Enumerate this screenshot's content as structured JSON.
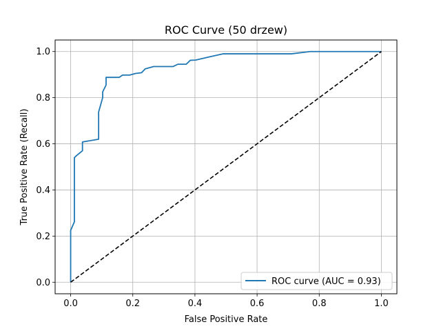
{
  "chart_data": {
    "type": "line",
    "title": "ROC Curve (50 drzew)",
    "xlabel": "False Positive Rate",
    "ylabel": "True Positive Rate (Recall)",
    "xlim": [
      -0.05,
      1.05
    ],
    "ylim": [
      -0.05,
      1.05
    ],
    "xticks": [
      0.0,
      0.2,
      0.4,
      0.6,
      0.8,
      1.0
    ],
    "yticks": [
      0.0,
      0.2,
      0.4,
      0.6,
      0.8,
      1.0
    ],
    "xtick_labels": [
      "0.0",
      "0.2",
      "0.4",
      "0.6",
      "0.8",
      "1.0"
    ],
    "ytick_labels": [
      "0.0",
      "0.2",
      "0.4",
      "0.6",
      "0.8",
      "1.0"
    ],
    "grid": true,
    "legend_position": "lower-right",
    "series": [
      {
        "name": "ROC curve (AUC = 0.93)",
        "color": "#1f77b4",
        "style": "solid",
        "x": [
          0.0,
          0.0,
          0.0,
          0.012,
          0.012,
          0.018,
          0.038,
          0.038,
          0.09,
          0.09,
          0.103,
          0.103,
          0.114,
          0.114,
          0.156,
          0.167,
          0.19,
          0.209,
          0.228,
          0.24,
          0.267,
          0.33,
          0.345,
          0.372,
          0.385,
          0.402,
          0.45,
          0.49,
          0.5,
          0.71,
          0.76,
          0.77,
          0.8,
          0.9,
          1.0
        ],
        "y": [
          0.0,
          0.09,
          0.225,
          0.262,
          0.54,
          0.548,
          0.57,
          0.608,
          0.62,
          0.738,
          0.8,
          0.825,
          0.855,
          0.888,
          0.888,
          0.898,
          0.898,
          0.905,
          0.908,
          0.925,
          0.935,
          0.935,
          0.945,
          0.945,
          0.962,
          0.963,
          0.978,
          0.99,
          0.99,
          0.99,
          0.998,
          1.0,
          1.0,
          1.0,
          1.0
        ]
      },
      {
        "color": "#000000",
        "style": "dashed",
        "x": [
          0.0,
          1.0
        ],
        "y": [
          0.0,
          1.0
        ]
      }
    ]
  }
}
